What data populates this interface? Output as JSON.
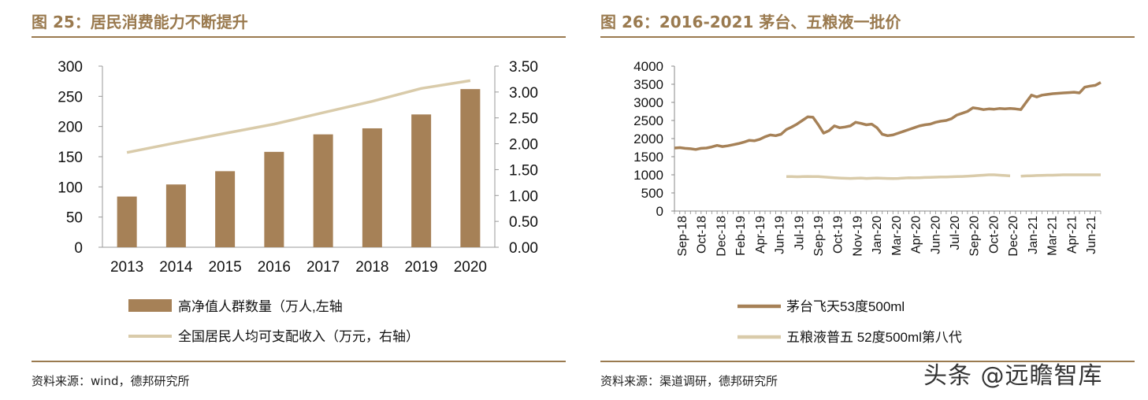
{
  "left_panel": {
    "title": "图 25：居民消费能力不断提升",
    "source": "资料来源：wind，德邦研究所"
  },
  "right_panel": {
    "title": "图 26：2016-2021 茅台、五粮液一批价",
    "source": "资料来源：渠道调研，德邦研究所"
  },
  "watermark": "头条 @远瞻智库",
  "chart_data": [
    {
      "type": "bar+line",
      "title": "图 25：居民消费能力不断提升",
      "categories": [
        "2013",
        "2014",
        "2015",
        "2016",
        "2017",
        "2018",
        "2019",
        "2020"
      ],
      "series": [
        {
          "name": "高净值人群数量（万人,左轴",
          "type": "bar",
          "axis": "left",
          "values": [
            84,
            104,
            126,
            158,
            187,
            197,
            220,
            262
          ]
        },
        {
          "name": "全国居民人均可支配收入（万元，右轴）",
          "type": "line",
          "axis": "right",
          "values": [
            1.83,
            2.02,
            2.2,
            2.38,
            2.6,
            2.82,
            3.07,
            3.22
          ]
        }
      ],
      "ylim_left": [
        0,
        300
      ],
      "yticks_left": [
        "0",
        "50",
        "100",
        "150",
        "200",
        "250",
        "300"
      ],
      "ylim_right": [
        0,
        3.5
      ],
      "yticks_right": [
        "0.00",
        "0.50",
        "1.00",
        "1.50",
        "2.00",
        "2.50",
        "3.00",
        "3.50"
      ],
      "bar_color": "#a68157",
      "line_color": "#d9cbaa",
      "legend_position": "bottom"
    },
    {
      "type": "line",
      "title": "图 26：2016-2021 茅台、五粮液一批价",
      "x_labels": [
        "Sep-18",
        "Oct-18",
        "Dec-18",
        "Feb-19",
        "Apr-19",
        "Jun-19",
        "Jul-19",
        "Sep-19",
        "Oct-19",
        "Nov-19",
        "Jan-20",
        "Mar-20",
        "Apr-20",
        "Jun-20",
        "Jul-20",
        "Sep-20",
        "Oct-20",
        "Dec-20",
        "Jan-21",
        "Mar-21",
        "Apr-21",
        "Jun-21"
      ],
      "ylim": [
        0,
        4000
      ],
      "yticks": [
        "0",
        "500",
        "1000",
        "1500",
        "2000",
        "2500",
        "3000",
        "3500",
        "4000"
      ],
      "series": [
        {
          "name": "茅台飞天53度500ml",
          "color": "#a68157",
          "values": [
            1740,
            1750,
            1730,
            1720,
            1700,
            1730,
            1740,
            1770,
            1810,
            1780,
            1800,
            1830,
            1860,
            1900,
            1950,
            1940,
            1980,
            2050,
            2100,
            2080,
            2120,
            2250,
            2320,
            2400,
            2500,
            2600,
            2590,
            2380,
            2150,
            2220,
            2350,
            2300,
            2320,
            2350,
            2450,
            2420,
            2380,
            2400,
            2300,
            2120,
            2080,
            2100,
            2150,
            2200,
            2250,
            2300,
            2350,
            2380,
            2400,
            2450,
            2480,
            2500,
            2550,
            2650,
            2700,
            2750,
            2850,
            2830,
            2800,
            2820,
            2810,
            2830,
            2820,
            2830,
            2820,
            2800,
            3000,
            3200,
            3150,
            3200,
            3220,
            3240,
            3250,
            3260,
            3270,
            3280,
            3260,
            3420,
            3450,
            3470,
            3550
          ]
        },
        {
          "name": "五粮液普五 52度500ml第八代",
          "color": "#d9cbaa",
          "start_index": 21,
          "values": [
            950,
            950,
            945,
            950,
            955,
            950,
            950,
            940,
            930,
            920,
            910,
            905,
            900,
            905,
            910,
            900,
            905,
            910,
            905,
            900,
            895,
            900,
            910,
            920,
            915,
            920,
            925,
            930,
            935,
            940,
            940,
            945,
            950,
            955,
            960,
            970,
            980,
            990,
            1000,
            1000,
            990,
            980,
            970,
            null,
            960,
            970,
            975,
            980,
            985,
            990,
            990,
            995,
            1000,
            1000,
            1000,
            1000,
            1000,
            1000,
            1000,
            1000
          ]
        }
      ],
      "legend_position": "bottom"
    }
  ]
}
